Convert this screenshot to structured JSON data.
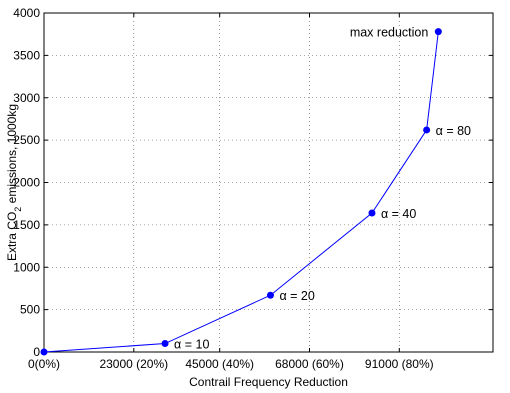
{
  "chart_data": {
    "type": "line",
    "title": "",
    "xlabel": "Contrail Frequency Reduction",
    "ylabel": "Extra CO2 emissions, 1000kg",
    "ylabel_parts": {
      "pre": "Extra CO",
      "sub": "2",
      "post": " emissions, 1000kg"
    },
    "xlim": [
      0,
      115000
    ],
    "ylim": [
      0,
      4000
    ],
    "grid": true,
    "x_ticks": [
      {
        "value": 0,
        "label": "0(0%)"
      },
      {
        "value": 23000,
        "label": "23000 (20%)"
      },
      {
        "value": 45000,
        "label": "45000 (40%)"
      },
      {
        "value": 68000,
        "label": "68000 (60%)"
      },
      {
        "value": 91000,
        "label": "91000 (80%)"
      }
    ],
    "y_ticks": [
      0,
      500,
      1000,
      1500,
      2000,
      2500,
      3000,
      3500,
      4000
    ],
    "series": [
      {
        "color": "#0000ff",
        "x": [
          0,
          31000,
          58000,
          84000,
          98000,
          101000
        ],
        "y": [
          0,
          100,
          670,
          1640,
          2620,
          3780
        ]
      }
    ],
    "annotations": [
      {
        "point_index": 1,
        "text": "α = 10",
        "side": "right"
      },
      {
        "point_index": 2,
        "text": "α = 20",
        "side": "right"
      },
      {
        "point_index": 3,
        "text": "α = 40",
        "side": "right"
      },
      {
        "point_index": 4,
        "text": "α = 80",
        "side": "right"
      },
      {
        "point_index": 5,
        "text": "max reduction",
        "side": "left"
      }
    ]
  }
}
